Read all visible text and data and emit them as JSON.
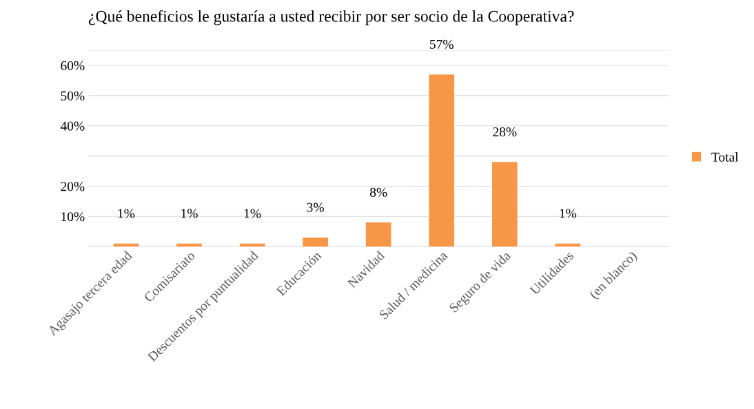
{
  "chart_data": {
    "type": "bar",
    "title": "¿Qué beneficios le gustaría a usted recibir por ser socio de la Cooperativa?",
    "categories": [
      "Agasajo tercera edad",
      "Comisariato",
      "Descuentos por puntualidad",
      "Educación",
      "Navidad",
      "Salud / medicina",
      "Seguro de vida",
      "Utilidades",
      "(en blanco)"
    ],
    "series": [
      {
        "name": "Total",
        "color": "#f79646",
        "values": [
          1,
          1,
          1,
          3,
          8,
          57,
          28,
          1,
          null
        ],
        "value_labels": [
          "1%",
          "1%",
          "1%",
          "3%",
          "8%",
          "57%",
          "28%",
          "1%",
          null
        ]
      }
    ],
    "ylim": [
      0,
      65
    ],
    "yticks": [
      {
        "value": 0,
        "label": null
      },
      {
        "value": 10,
        "label": "10%"
      },
      {
        "value": 20,
        "label": "20%"
      },
      {
        "value": 30,
        "label": null
      },
      {
        "value": 40,
        "label": "40%"
      },
      {
        "value": 50,
        "label": "50%"
      },
      {
        "value": 60,
        "label": "60%"
      },
      {
        "value": 65,
        "label": null
      }
    ],
    "grid": "y",
    "legend": "right"
  }
}
